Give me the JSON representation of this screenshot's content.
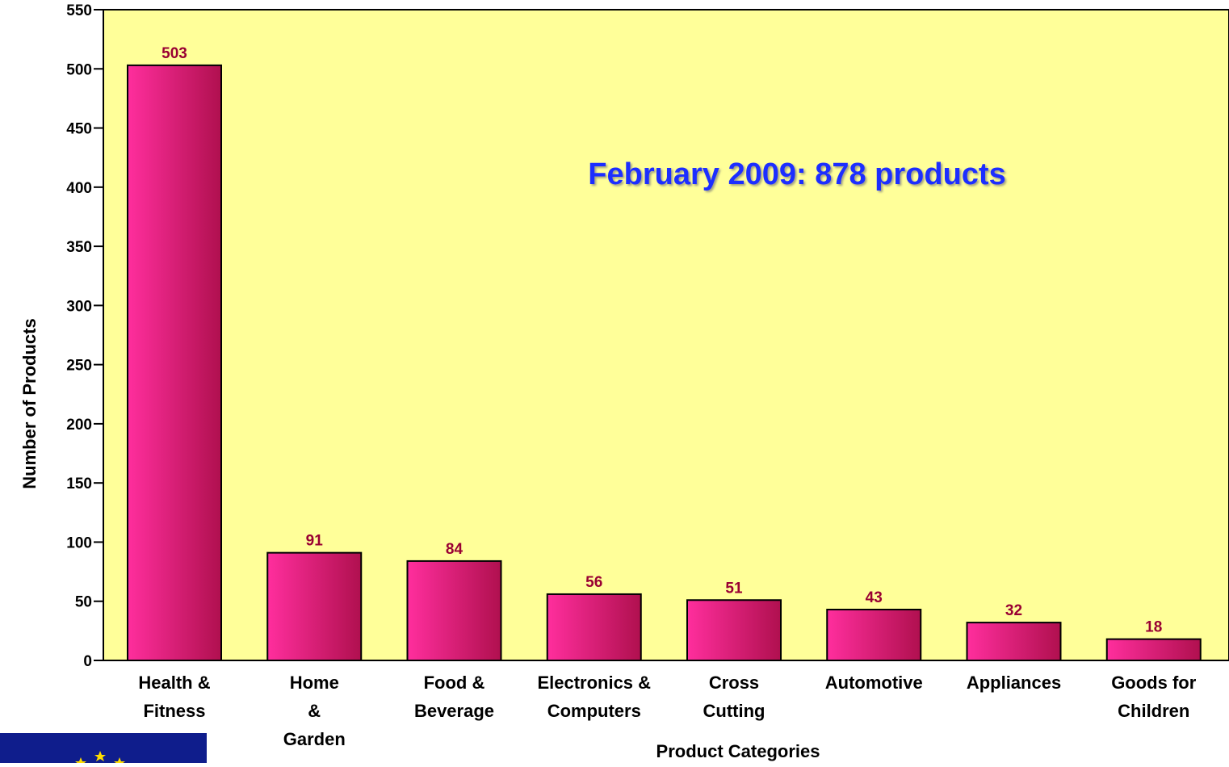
{
  "chart_data": {
    "type": "bar",
    "annotation": "February 2009:  878 products",
    "xlabel": "Product Categories",
    "ylabel": "Number of Products",
    "ylim": [
      0,
      550
    ],
    "yticks": [
      0,
      50,
      100,
      150,
      200,
      250,
      300,
      350,
      400,
      450,
      500,
      550
    ],
    "categories": [
      [
        "Health &",
        "Fitness"
      ],
      [
        "Home",
        "&",
        "Garden"
      ],
      [
        "Food &",
        "Beverage"
      ],
      [
        "Electronics &",
        "Computers"
      ],
      [
        "Cross",
        "Cutting"
      ],
      [
        "Automotive"
      ],
      [
        "Appliances"
      ],
      [
        "Goods for",
        "Children"
      ]
    ],
    "values": [
      503,
      91,
      84,
      56,
      51,
      43,
      32,
      18
    ],
    "grid": false,
    "legend": "none",
    "colors": {
      "plot_background": "#ffff99",
      "bar_light": "#ff2e9d",
      "bar_dark": "#b0104f",
      "value_label": "#990033",
      "annotation": "#1f2fff"
    }
  },
  "logo": {
    "name": "eu-flag"
  }
}
